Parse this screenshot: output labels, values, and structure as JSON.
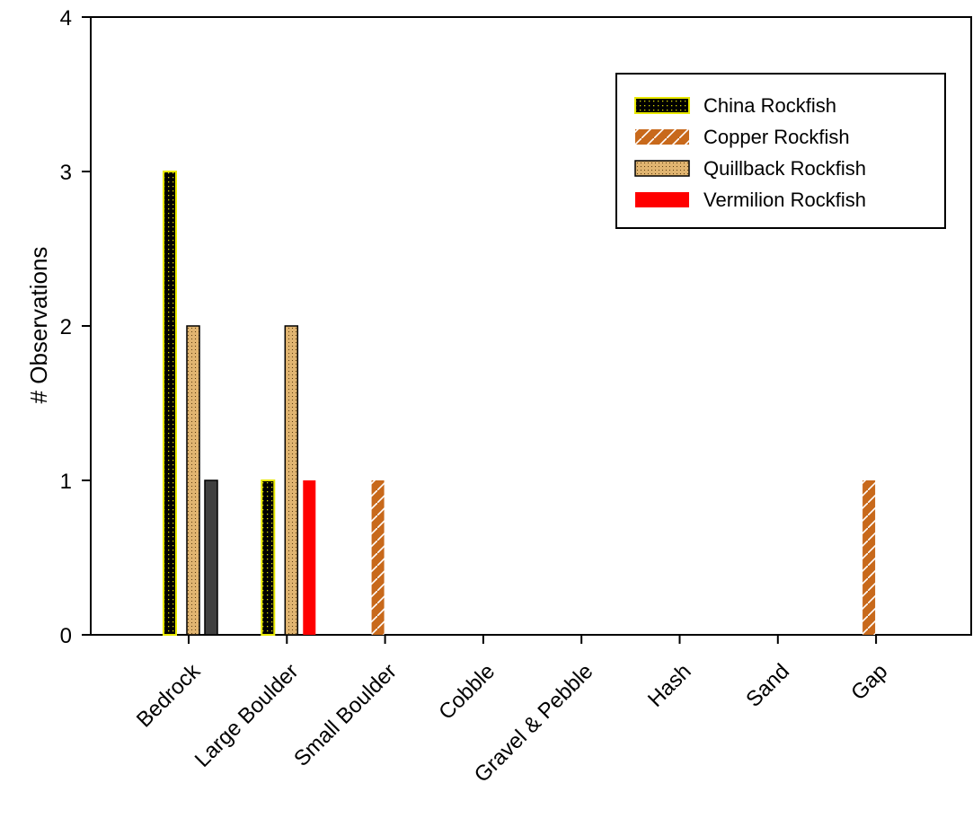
{
  "chart_data": {
    "type": "bar",
    "title": "",
    "xlabel": "",
    "ylabel": "# Observations",
    "ylim": [
      0,
      4
    ],
    "yticks": [
      "0",
      "1",
      "2",
      "3",
      "4"
    ],
    "grid": false,
    "legend_position": "top-right",
    "categories": [
      "Bedrock",
      "Large Boulder",
      "Small Boulder",
      "Cobble",
      "Gravel & Pebble",
      "Hash",
      "Sand",
      "Gap"
    ],
    "series": [
      {
        "name": "China Rockfish",
        "values": [
          3,
          1,
          0,
          0,
          0,
          0,
          0,
          0
        ]
      },
      {
        "name": "Copper Rockfish",
        "values": [
          0,
          0,
          1,
          0,
          0,
          0,
          0,
          1
        ]
      },
      {
        "name": "Quillback Rockfish",
        "values": [
          2,
          2,
          0,
          0,
          0,
          0,
          0,
          0
        ]
      },
      {
        "name": "Vermilion Rockfish",
        "values": [
          1,
          1,
          0,
          0,
          0,
          0,
          0,
          0
        ]
      }
    ]
  },
  "colors": {
    "china_fill": "#000000",
    "china_border": "#e8e800",
    "copper": "#c8691b",
    "quillback": "#e0b470",
    "vermilion": "#ff0000",
    "vermilion_bedrock": "#404040"
  }
}
